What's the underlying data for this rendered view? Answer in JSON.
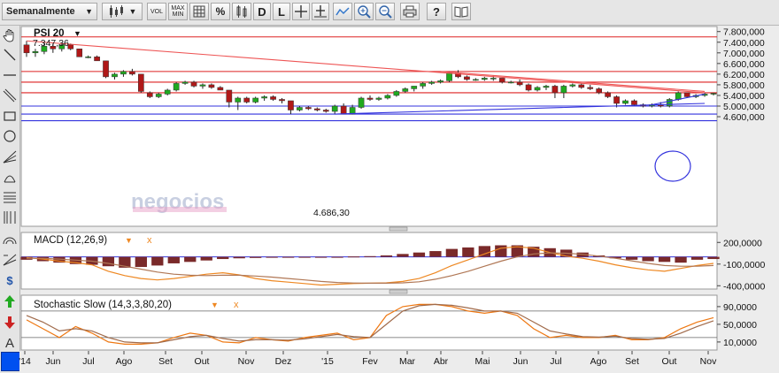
{
  "toolbar": {
    "period_select": "Semanalmente",
    "vol_label": "VOL",
    "max_label": "MAX",
    "min_label": "MIN",
    "percent_label": "%",
    "d_label": "D",
    "l_label": "L"
  },
  "colors": {
    "up_candle": "#1faa1f",
    "down_candle": "#b01818",
    "resistance_line": "#dd2222",
    "support_line": "#3333dd",
    "trend_line": "#ee5555",
    "macd_line": "#ee8822",
    "signal_line": "#b07755",
    "histogram": "#7a2a2a"
  },
  "main_panel": {
    "title": "PSI 20",
    "high_label": "7.347,36",
    "low_label": "4.686,30",
    "watermark": "negocios",
    "y_ticks": [
      "7.800,000",
      "7.400,000",
      "7.000,000",
      "6.600,000",
      "6.200,000",
      "5.800,000",
      "5.400,000",
      "5.000,000",
      "4.600,000"
    ]
  },
  "macd_panel": {
    "title": "MACD (12,26,9)",
    "y_ticks": [
      "200,0000",
      "-100,0000",
      "-400,0000"
    ]
  },
  "stoch_panel": {
    "title": "Stochastic Slow (14,3,3,80,20)",
    "y_ticks": [
      "90,0000",
      "50,0000",
      "10,0000"
    ]
  },
  "x_ticks": [
    "'14",
    "Jun",
    "Jul",
    "Ago",
    "Set",
    "Out",
    "Nov",
    "Dez",
    "'15",
    "Fev",
    "Mar",
    "Abr",
    "Mai",
    "Jun",
    "Jul",
    "Ago",
    "Set",
    "Out",
    "Nov"
  ],
  "chart_data": [
    {
      "type": "candlestick",
      "title": "PSI 20",
      "ylim": [
        4400,
        7900
      ],
      "horizontal_levels": {
        "red": [
          7600,
          6300,
          5900,
          5500
        ],
        "blue": [
          5000,
          4700,
          4450
        ]
      },
      "trend_lines": [
        {
          "color": "red",
          "from": [
            "2014-05-16",
            7450
          ],
          "to": [
            "2015-11-06",
            5500
          ]
        },
        {
          "color": "red",
          "from": [
            "2015-04-10",
            6300
          ],
          "to": [
            "2015-11-06",
            5550
          ]
        },
        {
          "color": "blue",
          "from": [
            "2015-01-16",
            4700
          ],
          "to": [
            "2015-11-06",
            5100
          ]
        },
        {
          "color": "blue",
          "from": [
            "2015-09-25",
            5050
          ],
          "to": [
            "2015-11-06",
            5450
          ]
        }
      ],
      "annotations": [
        "7.347,36",
        "4.686,30"
      ],
      "ohlc": [
        [
          7300,
          7450,
          6850,
          7000
        ],
        [
          7000,
          7150,
          6850,
          7050
        ],
        [
          7050,
          7350,
          6950,
          7250
        ],
        [
          7250,
          7350,
          7000,
          7150
        ],
        [
          7150,
          7350,
          7050,
          7300
        ],
        [
          7300,
          7350,
          7100,
          7150
        ],
        [
          7150,
          7150,
          6850,
          6850
        ],
        [
          6850,
          6900,
          6800,
          6850
        ],
        [
          6850,
          6900,
          6700,
          6700
        ],
        [
          6700,
          6700,
          6050,
          6100
        ],
        [
          6100,
          6250,
          6000,
          6200
        ],
        [
          6200,
          6350,
          6100,
          6300
        ],
        [
          6300,
          6400,
          6150,
          6200
        ],
        [
          6200,
          6200,
          5500,
          5550
        ],
        [
          5500,
          5550,
          5300,
          5350
        ],
        [
          5350,
          5500,
          5300,
          5450
        ],
        [
          5450,
          5650,
          5400,
          5600
        ],
        [
          5600,
          5900,
          5550,
          5850
        ],
        [
          5850,
          5950,
          5800,
          5900
        ],
        [
          5900,
          5950,
          5700,
          5750
        ],
        [
          5750,
          5850,
          5650,
          5800
        ],
        [
          5800,
          5850,
          5650,
          5700
        ],
        [
          5700,
          5750,
          5600,
          5600
        ],
        [
          5600,
          5600,
          4950,
          5150
        ],
        [
          5150,
          5350,
          4850,
          5300
        ],
        [
          5300,
          5350,
          5100,
          5150
        ],
        [
          5150,
          5350,
          5100,
          5300
        ],
        [
          5300,
          5400,
          5200,
          5350
        ],
        [
          5350,
          5400,
          5200,
          5250
        ],
        [
          5250,
          5300,
          5100,
          5200
        ],
        [
          5200,
          5200,
          4700,
          4850
        ],
        [
          4850,
          5000,
          4800,
          4950
        ],
        [
          4950,
          5000,
          4850,
          4900
        ],
        [
          4900,
          4950,
          4800,
          4850
        ],
        [
          4850,
          4900,
          4750,
          4800
        ],
        [
          4800,
          5050,
          4700,
          5000
        ],
        [
          5000,
          5100,
          4700,
          4700
        ],
        [
          4700,
          5050,
          4686,
          4950
        ],
        [
          4950,
          5350,
          4900,
          5300
        ],
        [
          5300,
          5400,
          5200,
          5250
        ],
        [
          5250,
          5350,
          5200,
          5300
        ],
        [
          5300,
          5450,
          5250,
          5400
        ],
        [
          5400,
          5600,
          5350,
          5550
        ],
        [
          5550,
          5700,
          5500,
          5650
        ],
        [
          5650,
          5750,
          5550,
          5750
        ],
        [
          5750,
          5900,
          5650,
          5850
        ],
        [
          5850,
          5950,
          5800,
          5900
        ],
        [
          5900,
          6000,
          5850,
          5950
        ],
        [
          5950,
          6300,
          5900,
          6250
        ],
        [
          6250,
          6350,
          6050,
          6100
        ],
        [
          6100,
          6150,
          5950,
          6000
        ],
        [
          6000,
          6050,
          5950,
          6000
        ],
        [
          6000,
          6100,
          5950,
          6050
        ],
        [
          6050,
          6150,
          5950,
          6050
        ],
        [
          6050,
          6050,
          5850,
          5900
        ],
        [
          5900,
          5950,
          5850,
          5900
        ],
        [
          5900,
          6000,
          5750,
          5800
        ],
        [
          5800,
          5850,
          5550,
          5600
        ],
        [
          5600,
          5750,
          5550,
          5700
        ],
        [
          5700,
          5800,
          5600,
          5750
        ],
        [
          5750,
          5800,
          5300,
          5500
        ],
        [
          5500,
          5800,
          5300,
          5750
        ],
        [
          5750,
          5850,
          5700,
          5800
        ],
        [
          5800,
          5850,
          5650,
          5700
        ],
        [
          5700,
          5800,
          5600,
          5650
        ],
        [
          5650,
          5700,
          5450,
          5500
        ],
        [
          5500,
          5550,
          5300,
          5350
        ],
        [
          5350,
          5400,
          4950,
          5100
        ],
        [
          5100,
          5250,
          5050,
          5200
        ],
        [
          5200,
          5250,
          5000,
          5050
        ],
        [
          5050,
          5100,
          4950,
          5000
        ],
        [
          5000,
          5100,
          4950,
          5050
        ],
        [
          5050,
          5150,
          4950,
          5000
        ],
        [
          5000,
          5300,
          4950,
          5250
        ],
        [
          5250,
          5550,
          5200,
          5500
        ],
        [
          5500,
          5500,
          5300,
          5350
        ],
        [
          5350,
          5450,
          5300,
          5400
        ],
        [
          5400,
          5500,
          5350,
          5450
        ],
        [
          5450,
          5500,
          5400,
          5480
        ]
      ]
    },
    {
      "type": "line",
      "title": "MACD (12,26,9)",
      "ylim": [
        -420000,
        230000
      ],
      "series": [
        {
          "name": "MACD",
          "values": [
            -10000,
            -30000,
            -60000,
            -80000,
            -110000,
            -200000,
            -260000,
            -300000,
            -320000,
            -300000,
            -270000,
            -240000,
            -220000,
            -250000,
            -300000,
            -330000,
            -350000,
            -370000,
            -390000,
            -380000,
            -370000,
            -365000,
            -360000,
            -340000,
            -300000,
            -220000,
            -120000,
            -40000,
            40000,
            120000,
            140000,
            120000,
            60000,
            10000,
            -20000,
            -60000,
            -110000,
            -150000,
            -180000,
            -200000,
            -160000,
            -120000,
            -90000
          ]
        },
        {
          "name": "Signal",
          "values": [
            -20000,
            -20000,
            -30000,
            -45000,
            -60000,
            -90000,
            -130000,
            -170000,
            -210000,
            -240000,
            -255000,
            -260000,
            -255000,
            -255000,
            -265000,
            -280000,
            -300000,
            -320000,
            -340000,
            -355000,
            -362000,
            -365000,
            -365000,
            -360000,
            -345000,
            -310000,
            -260000,
            -200000,
            -130000,
            -60000,
            0,
            40000,
            55000,
            50000,
            35000,
            10000,
            -20000,
            -55000,
            -90000,
            -120000,
            -130000,
            -130000,
            -120000
          ]
        }
      ],
      "histogram": [
        -40000,
        -60000,
        -80000,
        -100000,
        -110000,
        -130000,
        -150000,
        -140000,
        -120000,
        -90000,
        -70000,
        -50000,
        -30000,
        -20000,
        -15000,
        -10000,
        -5000,
        -5000,
        -5000,
        0,
        5000,
        10000,
        20000,
        40000,
        60000,
        80000,
        110000,
        130000,
        150000,
        160000,
        160000,
        140000,
        120000,
        100000,
        60000,
        20000,
        -20000,
        -40000,
        -60000,
        -70000,
        -80000,
        -40000,
        -30000
      ]
    },
    {
      "type": "line",
      "title": "Stochastic Slow (14,3,3,80,20)",
      "ylim": [
        0,
        100
      ],
      "levels": [
        80,
        20
      ],
      "series": [
        {
          "name": "%K",
          "values": [
            60,
            40,
            20,
            45,
            30,
            10,
            5,
            5,
            8,
            20,
            30,
            25,
            10,
            8,
            20,
            15,
            12,
            20,
            25,
            30,
            15,
            20,
            70,
            90,
            95,
            95,
            90,
            80,
            75,
            80,
            70,
            40,
            20,
            25,
            20,
            20,
            25,
            15,
            15,
            20,
            40,
            55,
            65
          ]
        },
        {
          "name": "%D",
          "values": [
            70,
            55,
            35,
            40,
            35,
            20,
            10,
            8,
            8,
            15,
            22,
            25,
            18,
            12,
            15,
            15,
            14,
            17,
            22,
            27,
            22,
            20,
            50,
            80,
            92,
            95,
            93,
            87,
            80,
            80,
            75,
            55,
            35,
            28,
            22,
            21,
            23,
            18,
            16,
            18,
            30,
            45,
            58
          ]
        }
      ]
    }
  ]
}
